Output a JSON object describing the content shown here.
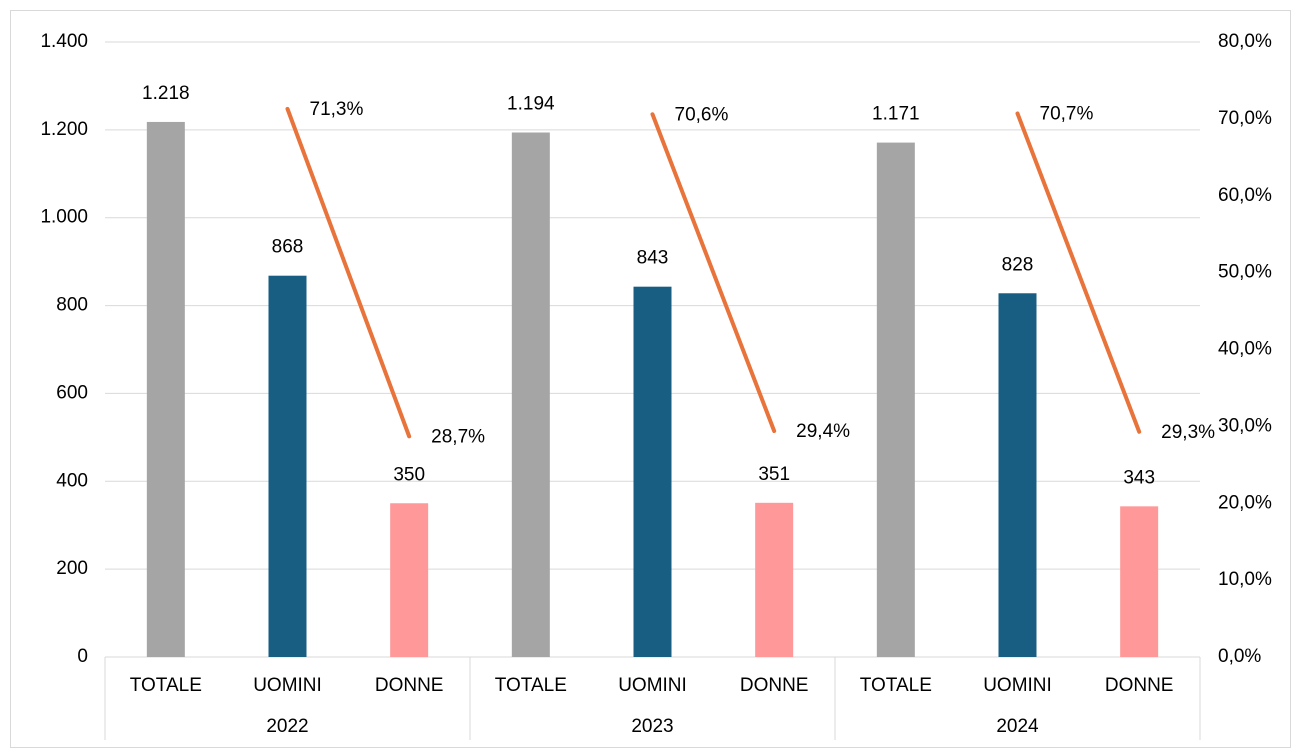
{
  "chart_data": {
    "type": "bar",
    "categories": [
      "TOTALE",
      "UOMINI",
      "DONNE",
      "TOTALE",
      "UOMINI",
      "DONNE",
      "TOTALE",
      "UOMINI",
      "DONNE"
    ],
    "groups": [
      "2022",
      "2023",
      "2024"
    ],
    "series": [
      {
        "type": "bar",
        "values": [
          1218,
          868,
          350,
          1194,
          843,
          351,
          1171,
          828,
          343
        ],
        "value_labels": [
          "1.218",
          "868",
          "350",
          "1.194",
          "843",
          "351",
          "1.171",
          "828",
          "343"
        ],
        "colors": [
          "#a5a5a5",
          "#175e82",
          "#ff9999",
          "#a5a5a5",
          "#175e82",
          "#ff9999",
          "#a5a5a5",
          "#175e82",
          "#ff9999"
        ]
      },
      {
        "type": "line",
        "axis": "y2",
        "color": "#e8743b",
        "values": [
          null,
          71.3,
          28.7,
          null,
          70.6,
          29.4,
          null,
          70.7,
          29.3
        ],
        "value_labels": [
          null,
          "71,3%",
          "28,7%",
          null,
          "70,6%",
          "29,4%",
          null,
          "70,7%",
          "29,3%"
        ]
      }
    ],
    "ylim": [
      0,
      1400
    ],
    "yticks": [
      0,
      200,
      400,
      600,
      800,
      {
        "value": 1000,
        "label": "1.000"
      },
      {
        "value": 1200,
        "label": "1.200"
      },
      {
        "value": 1400,
        "label": "1.400"
      }
    ],
    "y2lim": [
      0,
      80
    ],
    "y2ticks": [
      {
        "value": 0,
        "label": "0,0%"
      },
      {
        "value": 10,
        "label": "10,0%"
      },
      {
        "value": 20,
        "label": "20,0%"
      },
      {
        "value": 30,
        "label": "30,0%"
      },
      {
        "value": 40,
        "label": "40,0%"
      },
      {
        "value": 50,
        "label": "50,0%"
      },
      {
        "value": 60,
        "label": "60,0%"
      },
      {
        "value": 70,
        "label": "70,0%"
      },
      {
        "value": 80,
        "label": "80,0%"
      }
    ],
    "grid": true
  }
}
